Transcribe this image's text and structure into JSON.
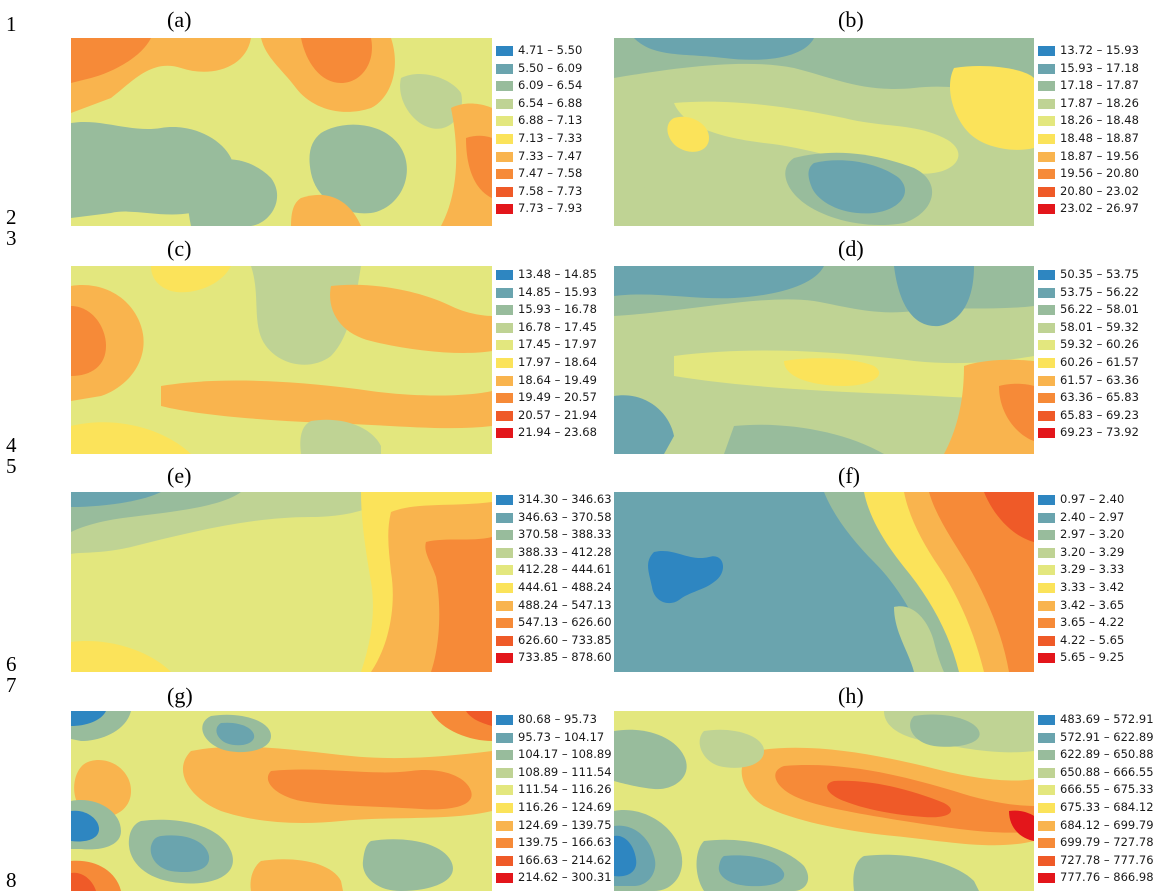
{
  "line_numbers": [
    "1",
    "2",
    "3",
    "4",
    "5",
    "6",
    "7",
    "8"
  ],
  "colors": [
    "#2e86c1",
    "#6aa4ae",
    "#98bc9c",
    "#bfd394",
    "#e3e77e",
    "#fbe35a",
    "#f9b44e",
    "#f68a38",
    "#ef5a28",
    "#e3161b"
  ],
  "panels": [
    {
      "label": "(a)",
      "legend": [
        "4.71 – 5.50",
        "5.50 – 6.09",
        "6.09 – 6.54",
        "6.54 – 6.88",
        "6.88 – 7.13",
        "7.13 – 7.33",
        "7.33 – 7.47",
        "7.47 – 7.58",
        "7.58 – 7.73",
        "7.73 – 7.93"
      ]
    },
    {
      "label": "(b)",
      "legend": [
        "13.72 – 15.93",
        "15.93 – 17.18",
        "17.18 – 17.87",
        "17.87 – 18.26",
        "18.26 – 18.48",
        "18.48 – 18.87",
        "18.87 – 19.56",
        "19.56 – 20.80",
        "20.80 – 23.02",
        "23.02 – 26.97"
      ]
    },
    {
      "label": "(c)",
      "legend": [
        "13.48 – 14.85",
        "14.85 – 15.93",
        "15.93 – 16.78",
        "16.78 – 17.45",
        "17.45 – 17.97",
        "17.97 – 18.64",
        "18.64 – 19.49",
        "19.49 – 20.57",
        "20.57 – 21.94",
        "21.94 – 23.68"
      ]
    },
    {
      "label": "(d)",
      "legend": [
        "50.35 – 53.75",
        "53.75 – 56.22",
        "56.22 – 58.01",
        "58.01 – 59.32",
        "59.32 – 60.26",
        "60.26 – 61.57",
        "61.57 – 63.36",
        "63.36 – 65.83",
        "65.83 – 69.23",
        "69.23 – 73.92"
      ]
    },
    {
      "label": "(e)",
      "legend": [
        "314.30 – 346.63",
        "346.63 – 370.58",
        "370.58 – 388.33",
        "388.33 – 412.28",
        "412.28 – 444.61",
        "444.61 – 488.24",
        "488.24 – 547.13",
        "547.13 – 626.60",
        "626.60 – 733.85",
        "733.85 – 878.60"
      ]
    },
    {
      "label": "(f)",
      "legend": [
        "0.97 – 2.40",
        "2.40 – 2.97",
        "2.97 – 3.20",
        "3.20 – 3.29",
        "3.29 – 3.33",
        "3.33 – 3.42",
        "3.42 – 3.65",
        "3.65 – 4.22",
        "4.22 – 5.65",
        "5.65 – 9.25"
      ]
    },
    {
      "label": "(g)",
      "legend": [
        "80.68 – 95.73",
        "95.73 – 104.17",
        "104.17 – 108.89",
        "108.89 – 111.54",
        "111.54 – 116.26",
        "116.26 – 124.69",
        "124.69 – 139.75",
        "139.75 – 166.63",
        "166.63 – 214.62",
        "214.62 – 300.31"
      ]
    },
    {
      "label": "(h)",
      "legend": [
        "483.69 – 572.91",
        "572.91 – 622.89",
        "622.89 – 650.88",
        "650.88 – 666.55",
        "666.55 – 675.33",
        "675.33 – 684.12",
        "684.12 – 699.79",
        "699.79 – 727.78",
        "727.78 – 777.76",
        "777.76 – 866.98"
      ]
    }
  ]
}
